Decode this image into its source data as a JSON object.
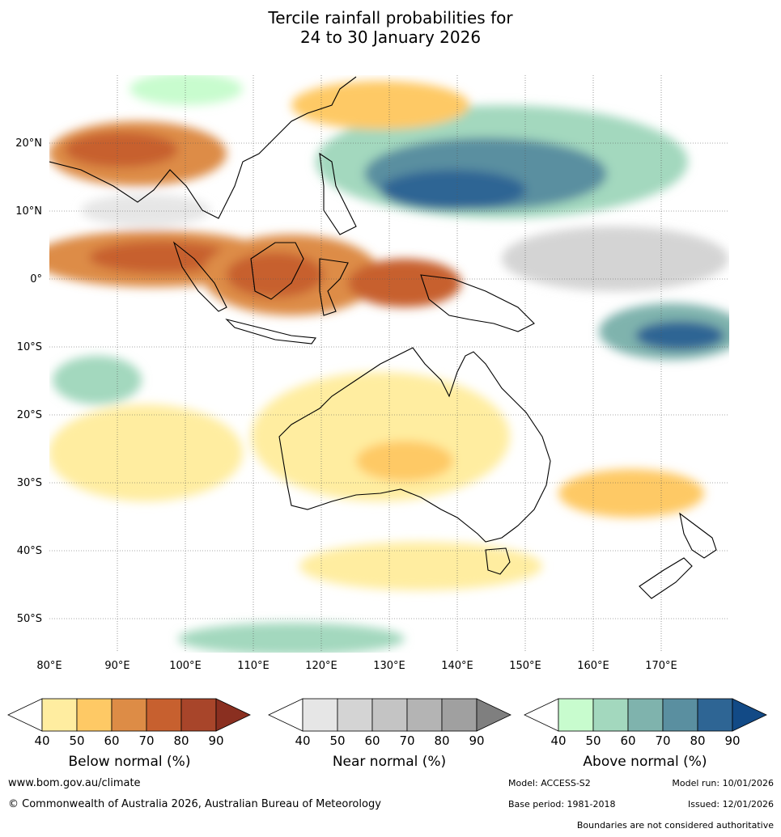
{
  "title": {
    "line1": "Tercile rainfall probabilities for",
    "line2": "24 to 30 January 2026"
  },
  "map": {
    "lon_labels": [
      "80°E",
      "90°E",
      "100°E",
      "110°E",
      "120°E",
      "130°E",
      "140°E",
      "150°E",
      "160°E",
      "170°E"
    ],
    "lat_labels": [
      "20°N",
      "10°N",
      "0°",
      "10°S",
      "20°S",
      "30°S",
      "40°S",
      "50°S"
    ],
    "lon_range": [
      80,
      180
    ],
    "lat_range": [
      -55,
      30
    ],
    "gridlines": true
  },
  "colorbars": [
    {
      "label": "Below normal (%)",
      "ticks": [
        "40",
        "50",
        "60",
        "70",
        "80",
        "90"
      ],
      "colors": [
        "#ffffff",
        "#ffeda0",
        "#fec965",
        "#dd8c46",
        "#c7602f",
        "#a8452a",
        "#8a2f20"
      ]
    },
    {
      "label": "Near normal (%)",
      "ticks": [
        "40",
        "50",
        "60",
        "70",
        "80",
        "90"
      ],
      "colors": [
        "#ffffff",
        "#e6e6e6",
        "#d4d4d4",
        "#c4c4c4",
        "#b4b4b4",
        "#a0a0a0",
        "#7f7f7f"
      ]
    },
    {
      "label": "Above normal (%)",
      "ticks": [
        "40",
        "50",
        "60",
        "70",
        "80",
        "90"
      ],
      "colors": [
        "#ffffff",
        "#c8fcce",
        "#a3d8be",
        "#7fb3ad",
        "#5a8fa0",
        "#2e6594",
        "#124a86"
      ]
    }
  ],
  "footer": {
    "website": "www.bom.gov.au/climate",
    "copyright": "© Commonwealth of Australia 2026, Australian Bureau of Meteorology",
    "model": "Model: ACCESS-S2",
    "model_run": "Model run: 10/01/2026",
    "base_period": "Base period: 1981-2018",
    "issued": "Issued: 12/01/2026",
    "disclaimer": "Boundaries are not considered authoritative"
  }
}
